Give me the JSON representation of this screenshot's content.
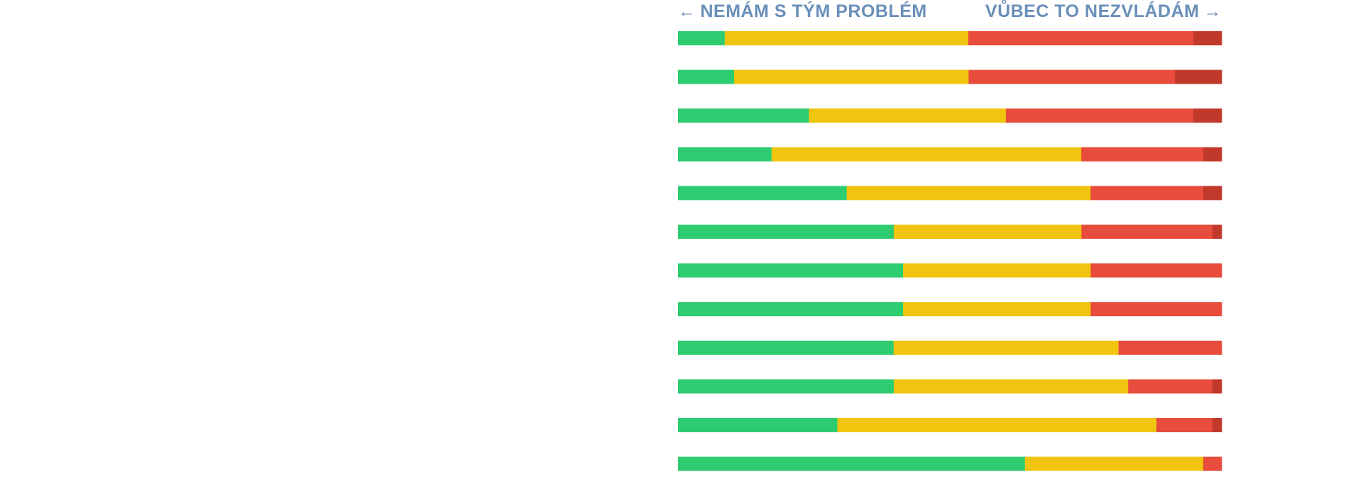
{
  "chart_data": {
    "type": "bar",
    "orientation": "horizontal",
    "stacked": true,
    "normalized": true,
    "left_label": "NEMÁM S TÝM PROBLÉM",
    "right_label": "VŮBEC TO NEZVLÁDÁM",
    "left_arrow": "←",
    "right_arrow": "→",
    "xlim": [
      0,
      100
    ],
    "grid": false,
    "legend": "none",
    "series": [
      {
        "color": "#2ecc71",
        "values": [
          8.6,
          10.3,
          24.1,
          17.2,
          31.0,
          39.7,
          41.4,
          41.4,
          39.7,
          39.7,
          29.3,
          63.8
        ]
      },
      {
        "color": "#f1c40f",
        "values": [
          44.8,
          43.1,
          36.2,
          56.9,
          44.8,
          34.5,
          34.5,
          34.5,
          41.4,
          43.1,
          58.6,
          32.8
        ]
      },
      {
        "color": "#e74c3c",
        "values": [
          41.4,
          37.9,
          34.5,
          22.4,
          20.7,
          24.1,
          24.1,
          24.1,
          19.0,
          15.5,
          10.3,
          3.4
        ]
      },
      {
        "color": "#c0392b",
        "values": [
          5.2,
          8.6,
          5.2,
          3.4,
          3.4,
          1.7,
          0.0,
          0.0,
          0.0,
          1.7,
          1.7,
          0.0
        ]
      }
    ]
  }
}
